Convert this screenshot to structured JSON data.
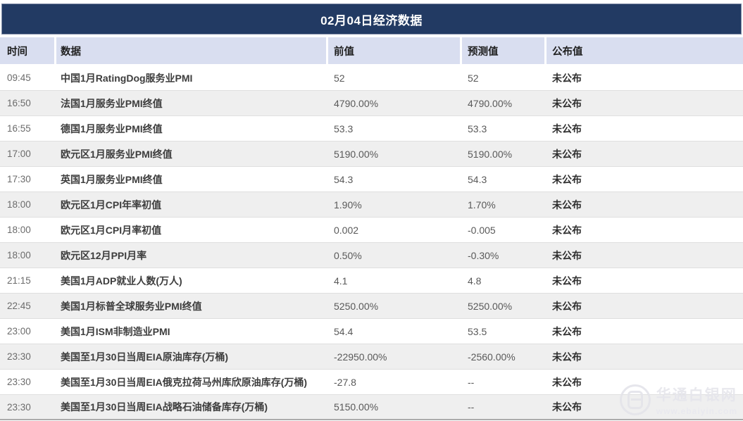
{
  "title": "02月04日经济数据",
  "colors": {
    "title_bar_bg": "#223A63",
    "title_text": "#FFFFFF",
    "header_bg": "#D9DEF0",
    "row_bg": "#FFFFFF",
    "row_alt_bg": "#EFEFEF",
    "row_border": "#DFDFDF"
  },
  "table": {
    "columns": [
      "时间",
      "数据",
      "前值",
      "预测值",
      "公布值"
    ],
    "rows": [
      {
        "time": "09:45",
        "name": "中国1月RatingDog服务业PMI",
        "prev": "52",
        "forecast": "52",
        "published": "未公布"
      },
      {
        "time": "16:50",
        "name": "法国1月服务业PMI终值",
        "prev": "4790.00%",
        "forecast": "4790.00%",
        "published": "未公布"
      },
      {
        "time": "16:55",
        "name": "德国1月服务业PMI终值",
        "prev": "53.3",
        "forecast": "53.3",
        "published": "未公布"
      },
      {
        "time": "17:00",
        "name": "欧元区1月服务业PMI终值",
        "prev": "5190.00%",
        "forecast": "5190.00%",
        "published": "未公布"
      },
      {
        "time": "17:30",
        "name": "英国1月服务业PMI终值",
        "prev": "54.3",
        "forecast": "54.3",
        "published": "未公布"
      },
      {
        "time": "18:00",
        "name": "欧元区1月CPI年率初值",
        "prev": "1.90%",
        "forecast": "1.70%",
        "published": "未公布"
      },
      {
        "time": "18:00",
        "name": "欧元区1月CPI月率初值",
        "prev": "0.002",
        "forecast": "-0.005",
        "published": "未公布"
      },
      {
        "time": "18:00",
        "name": "欧元区12月PPI月率",
        "prev": "0.50%",
        "forecast": "-0.30%",
        "published": "未公布"
      },
      {
        "time": "21:15",
        "name": "美国1月ADP就业人数(万人)",
        "prev": "4.1",
        "forecast": "4.8",
        "published": "未公布"
      },
      {
        "time": "22:45",
        "name": "美国1月标普全球服务业PMI终值",
        "prev": "5250.00%",
        "forecast": "5250.00%",
        "published": "未公布"
      },
      {
        "time": "23:00",
        "name": "美国1月ISM非制造业PMI",
        "prev": "54.4",
        "forecast": "53.5",
        "published": "未公布"
      },
      {
        "time": "23:30",
        "name": "美国至1月30日当周EIA原油库存(万桶)",
        "prev": "-22950.00%",
        "forecast": "-2560.00%",
        "published": "未公布"
      },
      {
        "time": "23:30",
        "name": "美国至1月30日当周EIA俄克拉荷马州库欣原油库存(万桶)",
        "prev": "-27.8",
        "forecast": "--",
        "published": "未公布"
      },
      {
        "time": "23:30",
        "name": "美国至1月30日当周EIA战略石油储备库存(万桶)",
        "prev": "5150.00%",
        "forecast": "--",
        "published": "未公布"
      }
    ]
  },
  "watermark": {
    "site_name": "华通白银网",
    "site_url": "www.ebaiyin.com",
    "logo": "e-logo-icon"
  }
}
